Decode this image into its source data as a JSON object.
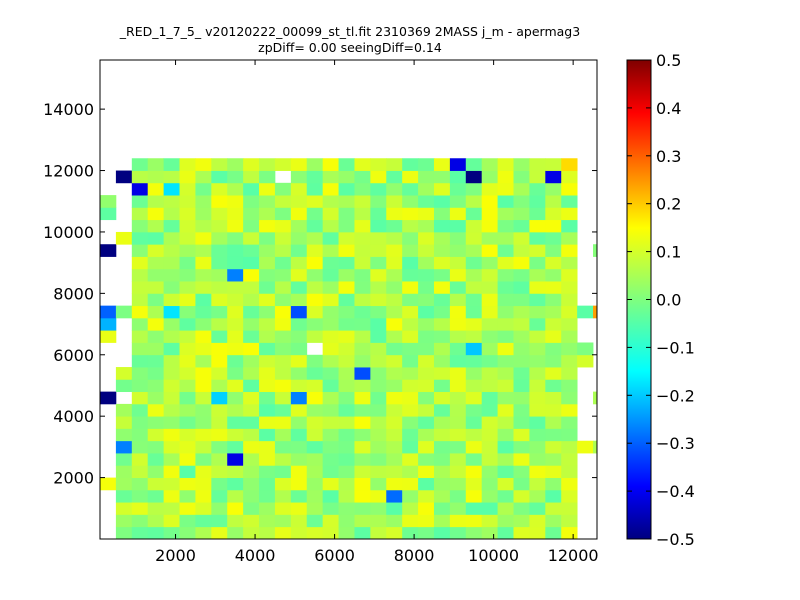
{
  "chart_data": {
    "type": "heatmap",
    "title_line1": "_RED_1_7_5_ v20120222_00099_st_tl.fit 2310369 2MASS j_m - apermag3",
    "title_line2": "zpDiff= 0.00 seeingDiff=0.14",
    "xlim": [
      100,
      12600
    ],
    "ylim": [
      0,
      15600
    ],
    "x_ticks": [
      "2000",
      "4000",
      "6000",
      "8000",
      "10000",
      "12000"
    ],
    "x_tick_values": [
      2000,
      4000,
      6000,
      8000,
      10000,
      12000
    ],
    "y_ticks": [
      "2000",
      "4000",
      "6000",
      "8000",
      "10000",
      "12000",
      "14000"
    ],
    "y_tick_values": [
      2000,
      4000,
      6000,
      8000,
      10000,
      12000,
      14000
    ],
    "grid": false,
    "colormap": "jet",
    "colorbar": {
      "vmin": -0.5,
      "vmax": 0.5,
      "ticks": [
        "0.5",
        "0.4",
        "0.3",
        "0.2",
        "0.1",
        "0.0",
        "−0.1",
        "−0.2",
        "−0.3",
        "−0.4",
        "−0.5"
      ],
      "tick_values": [
        0.5,
        0.4,
        0.3,
        0.2,
        0.1,
        0.0,
        -0.1,
        -0.2,
        -0.3,
        -0.4,
        -0.5
      ]
    },
    "grid_cols": 32,
    "grid_rows": 31,
    "cell_size": 400,
    "x_start": 100,
    "background_level": 0.04,
    "empty_cells": [
      [
        11,
        29
      ],
      [
        13,
        15
      ]
    ],
    "special_cells": [
      {
        "col": 0,
        "row": 11,
        "value": -0.5
      },
      {
        "col": 0,
        "row": 17,
        "value": -0.2
      },
      {
        "col": 0,
        "row": 18,
        "value": -0.28
      },
      {
        "col": 0,
        "row": 23,
        "value": -0.5
      },
      {
        "col": 1,
        "row": 7,
        "value": -0.25
      },
      {
        "col": 1,
        "row": 29,
        "value": -0.5
      },
      {
        "col": 2,
        "row": 28,
        "value": -0.4
      },
      {
        "col": 4,
        "row": 18,
        "value": -0.15
      },
      {
        "col": 4,
        "row": 28,
        "value": -0.15
      },
      {
        "col": 7,
        "row": 11,
        "value": -0.17
      },
      {
        "col": 8,
        "row": 6,
        "value": -0.4
      },
      {
        "col": 8,
        "row": 21,
        "value": -0.25
      },
      {
        "col": 12,
        "row": 11,
        "value": -0.25
      },
      {
        "col": 12,
        "row": 18,
        "value": -0.3
      },
      {
        "col": 16,
        "row": 13,
        "value": -0.3
      },
      {
        "col": 18,
        "row": 3,
        "value": -0.27
      },
      {
        "col": 22,
        "row": 30,
        "value": -0.4
      },
      {
        "col": 23,
        "row": 15,
        "value": -0.18
      },
      {
        "col": 23,
        "row": 29,
        "value": -0.5
      },
      {
        "col": 28,
        "row": 29,
        "value": -0.4
      },
      {
        "col": 29,
        "row": 30,
        "value": 0.16
      },
      {
        "col": 31,
        "row": 18,
        "value": 0.22
      },
      {
        "col": 16,
        "row": 25,
        "value": 0.1
      },
      {
        "col": 5,
        "row": 25,
        "value": 0.08
      }
    ]
  }
}
